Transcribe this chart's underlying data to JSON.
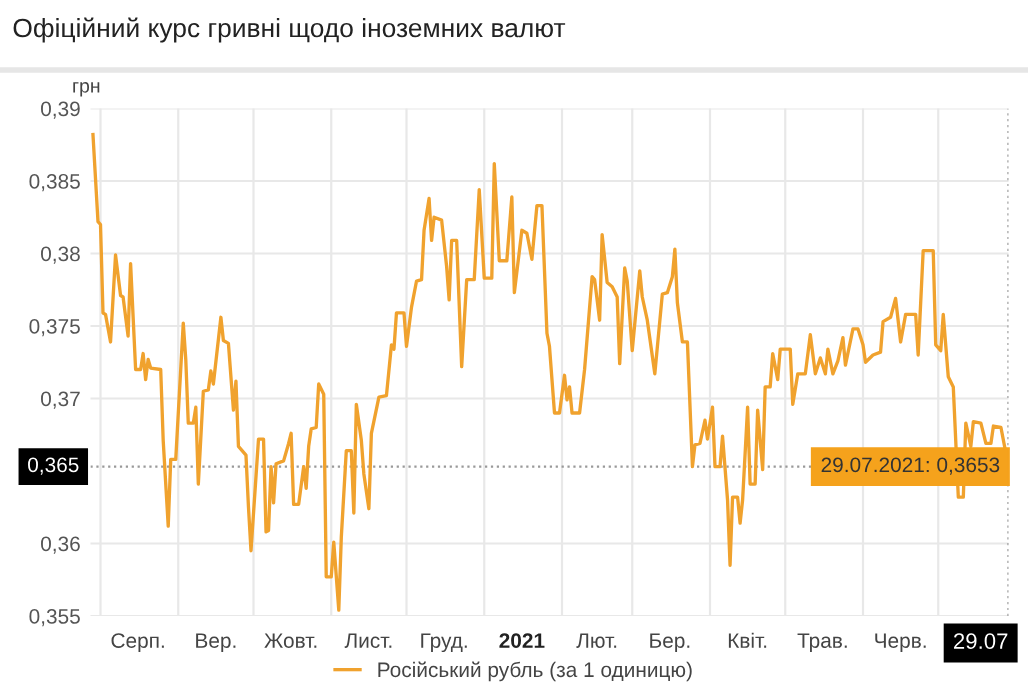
{
  "chart_data": {
    "type": "line",
    "title": "Офіційний курс гривні щодо іноземних валют",
    "ylabel": "грн",
    "x": [
      "2020-07-29",
      "2020-07-31",
      "2020-08-01",
      "2020-08-02",
      "2020-08-03",
      "2020-08-05",
      "2020-08-07",
      "2020-08-09",
      "2020-08-10",
      "2020-08-12",
      "2020-08-13",
      "2020-08-15",
      "2020-08-17",
      "2020-08-18",
      "2020-08-19",
      "2020-08-20",
      "2020-08-21",
      "2020-08-25",
      "2020-08-26",
      "2020-08-28",
      "2020-08-29",
      "2020-08-31",
      "2020-09-03",
      "2020-09-04",
      "2020-09-05",
      "2020-09-07",
      "2020-09-08",
      "2020-09-09",
      "2020-09-11",
      "2020-09-13",
      "2020-09-14",
      "2020-09-15",
      "2020-09-18",
      "2020-09-19",
      "2020-09-21",
      "2020-09-23",
      "2020-09-24",
      "2020-09-25",
      "2020-09-28",
      "2020-09-29",
      "2020-09-30",
      "2020-10-03",
      "2020-10-05",
      "2020-10-06",
      "2020-10-07",
      "2020-10-08",
      "2020-10-09",
      "2020-10-10",
      "2020-10-13",
      "2020-10-15",
      "2020-10-16",
      "2020-10-17",
      "2020-10-19",
      "2020-10-21",
      "2020-10-22",
      "2020-10-23",
      "2020-10-24",
      "2020-10-26",
      "2020-10-27",
      "2020-10-29",
      "2020-10-30",
      "2020-11-01",
      "2020-11-02",
      "2020-11-04",
      "2020-11-05",
      "2020-11-07",
      "2020-11-09",
      "2020-11-10",
      "2020-11-11",
      "2020-11-13",
      "2020-11-14",
      "2020-11-16",
      "2020-11-17",
      "2020-11-20",
      "2020-11-23",
      "2020-11-25",
      "2020-11-26",
      "2020-11-27",
      "2020-11-30",
      "2020-12-01",
      "2020-12-03",
      "2020-12-05",
      "2020-12-07",
      "2020-12-08",
      "2020-12-10",
      "2020-12-11",
      "2020-12-12",
      "2020-12-15",
      "2020-12-17",
      "2020-12-18",
      "2020-12-19",
      "2020-12-21",
      "2020-12-23",
      "2020-12-25",
      "2020-12-28",
      "2020-12-30",
      "2021-01-01",
      "2021-01-04",
      "2021-01-05",
      "2021-01-07",
      "2021-01-10",
      "2021-01-12",
      "2021-01-13",
      "2021-01-16",
      "2021-01-18",
      "2021-01-20",
      "2021-01-22",
      "2021-01-24",
      "2021-01-26",
      "2021-01-27",
      "2021-01-29",
      "2021-01-31",
      "2021-02-02",
      "2021-02-03",
      "2021-02-04",
      "2021-02-05",
      "2021-02-08",
      "2021-02-10",
      "2021-02-13",
      "2021-02-14",
      "2021-02-16",
      "2021-02-17",
      "2021-02-19",
      "2021-02-21",
      "2021-02-23",
      "2021-02-24",
      "2021-02-26",
      "2021-02-27",
      "2021-03-01",
      "2021-03-04",
      "2021-03-05",
      "2021-03-07",
      "2021-03-10",
      "2021-03-13",
      "2021-03-15",
      "2021-03-17",
      "2021-03-18",
      "2021-03-19",
      "2021-03-21",
      "2021-03-23",
      "2021-03-25",
      "2021-03-26",
      "2021-03-28",
      "2021-03-30",
      "2021-03-31",
      "2021-04-02",
      "2021-04-03",
      "2021-04-05",
      "2021-04-06",
      "2021-04-08",
      "2021-04-09",
      "2021-04-10",
      "2021-04-12",
      "2021-04-13",
      "2021-04-14",
      "2021-04-16",
      "2021-04-17",
      "2021-04-19",
      "2021-04-20",
      "2021-04-22",
      "2021-04-23",
      "2021-04-25",
      "2021-04-26",
      "2021-04-28",
      "2021-04-29",
      "2021-05-03",
      "2021-05-04",
      "2021-05-06",
      "2021-05-09",
      "2021-05-11",
      "2021-05-13",
      "2021-05-15",
      "2021-05-17",
      "2021-05-18",
      "2021-05-20",
      "2021-05-22",
      "2021-05-24",
      "2021-05-25",
      "2021-05-28",
      "2021-05-30",
      "2021-06-01",
      "2021-06-02",
      "2021-06-05",
      "2021-06-08",
      "2021-06-09",
      "2021-06-12",
      "2021-06-14",
      "2021-06-16",
      "2021-06-18",
      "2021-06-22",
      "2021-06-23",
      "2021-06-25",
      "2021-06-29",
      "2021-06-30",
      "2021-07-02",
      "2021-07-03",
      "2021-07-05",
      "2021-07-07",
      "2021-07-09",
      "2021-07-11",
      "2021-07-12",
      "2021-07-14",
      "2021-07-15",
      "2021-07-18",
      "2021-07-20",
      "2021-07-22",
      "2021-07-23",
      "2021-07-26",
      "2021-07-29"
    ],
    "series": [
      {
        "name": "Російський рубль (за 1 одиницю)",
        "color": "#f0a22e",
        "values": [
          0.3882,
          0.3822,
          0.382,
          0.3759,
          0.3758,
          0.3739,
          0.3799,
          0.3771,
          0.377,
          0.3743,
          0.3793,
          0.372,
          0.372,
          0.3731,
          0.3713,
          0.3727,
          0.3721,
          0.372,
          0.3671,
          0.3612,
          0.3658,
          0.3658,
          0.3752,
          0.3727,
          0.3683,
          0.3683,
          0.3694,
          0.3641,
          0.3705,
          0.3706,
          0.3719,
          0.371,
          0.3756,
          0.374,
          0.3738,
          0.3692,
          0.3712,
          0.3667,
          0.3661,
          0.3625,
          0.3595,
          0.3672,
          0.3672,
          0.3608,
          0.3609,
          0.3653,
          0.3628,
          0.3655,
          0.3657,
          0.3669,
          0.3676,
          0.3627,
          0.3627,
          0.3653,
          0.3638,
          0.3667,
          0.3679,
          0.368,
          0.371,
          0.3703,
          0.3577,
          0.3577,
          0.3601,
          0.3554,
          0.3604,
          0.3664,
          0.3664,
          0.3621,
          0.3696,
          0.3671,
          0.3648,
          0.3624,
          0.3676,
          0.3701,
          0.3702,
          0.3737,
          0.3734,
          0.3759,
          0.3759,
          0.3736,
          0.3763,
          0.3781,
          0.3782,
          0.3816,
          0.3838,
          0.3809,
          0.3825,
          0.3823,
          0.3791,
          0.3768,
          0.3809,
          0.3809,
          0.3722,
          0.3782,
          0.3782,
          0.3844,
          0.3783,
          0.3783,
          0.3862,
          0.3795,
          0.3795,
          0.3839,
          0.3773,
          0.3816,
          0.3814,
          0.3796,
          0.3833,
          0.3833,
          0.3745,
          0.3736,
          0.369,
          0.369,
          0.3716,
          0.3699,
          0.3708,
          0.369,
          0.369,
          0.372,
          0.3784,
          0.3782,
          0.3754,
          0.3813,
          0.378,
          0.3777,
          0.377,
          0.3724,
          0.379,
          0.3781,
          0.3733,
          0.3788,
          0.377,
          0.3754,
          0.3717,
          0.3772,
          0.3773,
          0.3784,
          0.3803,
          0.3766,
          0.3739,
          0.3739,
          0.3653,
          0.3668,
          0.3669,
          0.3685,
          0.3672,
          0.3694,
          0.3653,
          0.3653,
          0.3674,
          0.363,
          0.3585,
          0.3632,
          0.3632,
          0.3614,
          0.363,
          0.3694,
          0.3641,
          0.3641,
          0.3692,
          0.3651,
          0.3708,
          0.3708,
          0.3731,
          0.3713,
          0.3734,
          0.3734,
          0.3696,
          0.3717,
          0.3717,
          0.3744,
          0.3717,
          0.3728,
          0.3717,
          0.3734,
          0.3717,
          0.3726,
          0.3742,
          0.3723,
          0.3748,
          0.3748,
          0.3737,
          0.3725,
          0.373,
          0.3732,
          0.3753,
          0.3756,
          0.3769,
          0.3739,
          0.3758,
          0.3758,
          0.373,
          0.3802,
          0.3802,
          0.3737,
          0.3733,
          0.3758,
          0.3715,
          0.3708,
          0.3632,
          0.3632,
          0.3683,
          0.3667,
          0.3684,
          0.3683,
          0.3669,
          0.3669,
          0.3681,
          0.368,
          0.3653
        ]
      }
    ],
    "xlim": [
      "2020-07-28",
      "2021-07-29"
    ],
    "xticks": [
      {
        "value": "2020-08-01",
        "label": null
      },
      {
        "value": "2020-08-16",
        "label": "Серп."
      },
      {
        "value": "2020-09-01",
        "label": null
      },
      {
        "value": "2020-09-16",
        "label": "Вер."
      },
      {
        "value": "2020-10-01",
        "label": null
      },
      {
        "value": "2020-10-16",
        "label": "Жовт."
      },
      {
        "value": "2020-11-01",
        "label": null
      },
      {
        "value": "2020-11-16",
        "label": "Лист."
      },
      {
        "value": "2020-12-01",
        "label": null
      },
      {
        "value": "2020-12-16",
        "label": "Груд."
      },
      {
        "value": "2021-01-01",
        "label": null
      },
      {
        "value": "2021-01-16",
        "label": "2021"
      },
      {
        "value": "2021-02-01",
        "label": null
      },
      {
        "value": "2021-02-15",
        "label": "Лют."
      },
      {
        "value": "2021-03-01",
        "label": null
      },
      {
        "value": "2021-03-16",
        "label": "Бер."
      },
      {
        "value": "2021-04-01",
        "label": null
      },
      {
        "value": "2021-04-16",
        "label": "Квіт."
      },
      {
        "value": "2021-05-01",
        "label": null
      },
      {
        "value": "2021-05-16",
        "label": "Трав."
      },
      {
        "value": "2021-06-01",
        "label": null
      },
      {
        "value": "2021-06-16",
        "label": "Черв."
      },
      {
        "value": "2021-07-01",
        "label": null
      },
      {
        "value": "2021-07-29",
        "label": "29.07"
      }
    ],
    "ylim": [
      0.355,
      0.39
    ],
    "yticks": [
      {
        "value": 0.355,
        "label": "0,355"
      },
      {
        "value": 0.36,
        "label": "0,36"
      },
      {
        "value": 0.37,
        "label": "0,37"
      },
      {
        "value": 0.375,
        "label": "0,375"
      },
      {
        "value": 0.38,
        "label": "0,38"
      },
      {
        "value": 0.385,
        "label": "0,385"
      },
      {
        "value": 0.39,
        "label": "0,39"
      }
    ],
    "ref_lines": [
      {
        "axis": "y",
        "value": 0.3653,
        "label": "0,365",
        "line_style": "dotted",
        "color": "#999999"
      },
      {
        "axis": "x",
        "value": "2021-07-29",
        "line_style": "dotted",
        "color": "#999999"
      }
    ],
    "annotations": [
      {
        "text": "29.07.2021: 0,3653",
        "x": "2021-07-29",
        "y": 0.3653
      }
    ],
    "grid": true,
    "legend": "bottom",
    "marker": "none",
    "line_style": "solid"
  }
}
